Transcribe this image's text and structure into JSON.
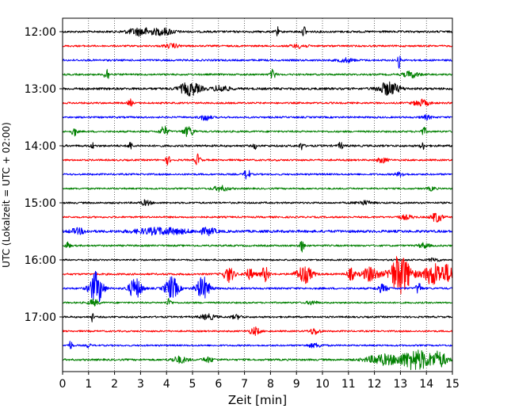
{
  "chart_data": {
    "type": "line",
    "title": "",
    "xlabel": "Zeit  [min]",
    "ylabel": "UTC (Lokalzeit = UTC + 02:00)",
    "xlim": [
      0,
      15
    ],
    "x_ticks": [
      "0",
      "1",
      "2",
      "3",
      "4",
      "5",
      "6",
      "7",
      "8",
      "9",
      "10",
      "11",
      "12",
      "13",
      "14",
      "15"
    ],
    "y_ticks": [
      {
        "label": "12:00",
        "trace": 0
      },
      {
        "label": "13:00",
        "trace": 4
      },
      {
        "label": "14:00",
        "trace": 8
      },
      {
        "label": "15:00",
        "trace": 12
      },
      {
        "label": "16:00",
        "trace": 16
      },
      {
        "label": "17:00",
        "trace": 20
      }
    ],
    "grid": {
      "x": true,
      "y": false,
      "style": "dotted"
    },
    "trace_minutes": 15,
    "trace_colors": [
      "#000000",
      "#ff0000",
      "#0000ff",
      "#008000"
    ],
    "traces": [
      {
        "start": "12:00",
        "color": "#000000",
        "noise": 0.16,
        "events": [
          [
            3.0,
            0.5,
            0.6
          ],
          [
            3.9,
            0.4,
            0.5
          ],
          [
            8.25,
            0.05,
            1.0
          ],
          [
            9.3,
            0.06,
            1.0
          ]
        ]
      },
      {
        "start": "12:15",
        "color": "#ff0000",
        "noise": 0.14,
        "events": [
          [
            4.2,
            0.3,
            0.3
          ],
          [
            9.1,
            0.3,
            0.3
          ]
        ]
      },
      {
        "start": "12:30",
        "color": "#0000ff",
        "noise": 0.15,
        "events": [
          [
            12.95,
            0.05,
            1.2
          ],
          [
            10.9,
            0.3,
            0.3
          ]
        ]
      },
      {
        "start": "12:45",
        "color": "#008000",
        "noise": 0.14,
        "events": [
          [
            1.7,
            0.1,
            1.0
          ],
          [
            8.1,
            0.1,
            0.8
          ],
          [
            13.4,
            0.3,
            0.5
          ]
        ]
      },
      {
        "start": "13:00",
        "color": "#000000",
        "noise": 0.18,
        "events": [
          [
            4.9,
            0.4,
            1.0
          ],
          [
            6.1,
            0.3,
            0.5
          ],
          [
            12.55,
            0.4,
            1.0
          ]
        ]
      },
      {
        "start": "13:15",
        "color": "#ff0000",
        "noise": 0.14,
        "events": [
          [
            2.6,
            0.08,
            0.6
          ],
          [
            13.8,
            0.3,
            0.5
          ]
        ]
      },
      {
        "start": "13:30",
        "color": "#0000ff",
        "noise": 0.14,
        "events": [
          [
            5.5,
            0.2,
            0.5
          ],
          [
            14.0,
            0.2,
            0.3
          ]
        ]
      },
      {
        "start": "13:45",
        "color": "#008000",
        "noise": 0.14,
        "events": [
          [
            0.45,
            0.1,
            0.7
          ],
          [
            3.9,
            0.15,
            0.8
          ],
          [
            4.85,
            0.2,
            0.8
          ],
          [
            13.9,
            0.1,
            0.6
          ]
        ]
      },
      {
        "start": "14:00",
        "color": "#000000",
        "noise": 0.16,
        "events": [
          [
            1.15,
            0.06,
            0.5
          ],
          [
            2.6,
            0.08,
            0.6
          ],
          [
            7.4,
            0.06,
            0.5
          ],
          [
            9.2,
            0.08,
            0.6
          ],
          [
            10.7,
            0.08,
            0.6
          ],
          [
            13.85,
            0.08,
            0.6
          ]
        ]
      },
      {
        "start": "14:15",
        "color": "#ff0000",
        "noise": 0.14,
        "events": [
          [
            4.05,
            0.08,
            0.7
          ],
          [
            5.2,
            0.1,
            0.9
          ],
          [
            12.3,
            0.2,
            0.4
          ]
        ]
      },
      {
        "start": "14:30",
        "color": "#0000ff",
        "noise": 0.14,
        "events": [
          [
            7.1,
            0.1,
            1.0
          ],
          [
            13.0,
            0.2,
            0.3
          ]
        ]
      },
      {
        "start": "14:45",
        "color": "#008000",
        "noise": 0.13,
        "events": [
          [
            6.1,
            0.3,
            0.4
          ],
          [
            14.2,
            0.15,
            0.3
          ]
        ]
      },
      {
        "start": "15:00",
        "color": "#000000",
        "noise": 0.14,
        "events": [
          [
            3.2,
            0.2,
            0.4
          ],
          [
            11.6,
            0.3,
            0.3
          ]
        ]
      },
      {
        "start": "15:15",
        "color": "#ff0000",
        "noise": 0.14,
        "events": [
          [
            13.2,
            0.3,
            0.3
          ],
          [
            14.4,
            0.2,
            0.8
          ]
        ]
      },
      {
        "start": "15:30",
        "color": "#0000ff",
        "noise": 0.2,
        "events": [
          [
            0.6,
            0.3,
            0.4
          ],
          [
            3.8,
            1.0,
            0.5
          ],
          [
            5.6,
            0.3,
            0.5
          ]
        ]
      },
      {
        "start": "15:45",
        "color": "#008000",
        "noise": 0.14,
        "events": [
          [
            0.2,
            0.08,
            0.6
          ],
          [
            9.2,
            0.1,
            0.9
          ],
          [
            13.9,
            0.2,
            0.4
          ]
        ]
      },
      {
        "start": "16:00",
        "color": "#000000",
        "noise": 0.13,
        "events": [
          [
            14.3,
            0.2,
            0.3
          ]
        ]
      },
      {
        "start": "16:15",
        "color": "#ff0000",
        "noise": 0.15,
        "events": [
          [
            6.4,
            0.2,
            1.2
          ],
          [
            7.2,
            0.2,
            0.8
          ],
          [
            7.8,
            0.15,
            1.2
          ],
          [
            9.3,
            0.3,
            1.4
          ],
          [
            11.1,
            0.15,
            0.9
          ],
          [
            11.85,
            0.3,
            1.2
          ],
          [
            13.0,
            0.4,
            3.2
          ],
          [
            14.3,
            0.4,
            1.8
          ],
          [
            14.85,
            0.2,
            1.2
          ]
        ]
      },
      {
        "start": "16:30",
        "color": "#0000ff",
        "noise": 0.15,
        "events": [
          [
            1.3,
            0.25,
            2.6
          ],
          [
            2.8,
            0.25,
            1.6
          ],
          [
            4.2,
            0.25,
            1.8
          ],
          [
            5.4,
            0.25,
            1.8
          ],
          [
            12.3,
            0.2,
            0.6
          ],
          [
            13.7,
            0.1,
            1.0
          ]
        ]
      },
      {
        "start": "16:45",
        "color": "#008000",
        "noise": 0.13,
        "events": [
          [
            1.2,
            0.2,
            0.5
          ],
          [
            4.1,
            0.1,
            0.6
          ],
          [
            9.6,
            0.2,
            0.3
          ]
        ]
      },
      {
        "start": "17:00",
        "color": "#000000",
        "noise": 0.14,
        "events": [
          [
            1.15,
            0.04,
            0.8
          ],
          [
            5.6,
            0.3,
            0.4
          ],
          [
            6.7,
            0.2,
            0.3
          ]
        ]
      },
      {
        "start": "17:15",
        "color": "#ff0000",
        "noise": 0.13,
        "events": [
          [
            7.4,
            0.2,
            0.6
          ],
          [
            9.7,
            0.2,
            0.5
          ]
        ]
      },
      {
        "start": "17:30",
        "color": "#0000ff",
        "noise": 0.13,
        "events": [
          [
            0.3,
            0.08,
            0.7
          ],
          [
            1.0,
            0.06,
            0.5
          ],
          [
            9.7,
            0.3,
            0.3
          ]
        ]
      },
      {
        "start": "17:45",
        "color": "#008000",
        "noise": 0.15,
        "events": [
          [
            4.5,
            0.3,
            0.5
          ],
          [
            5.6,
            0.2,
            0.4
          ],
          [
            12.3,
            0.6,
            0.8
          ],
          [
            13.6,
            0.6,
            1.6
          ],
          [
            14.5,
            0.3,
            1.1
          ]
        ]
      }
    ]
  }
}
